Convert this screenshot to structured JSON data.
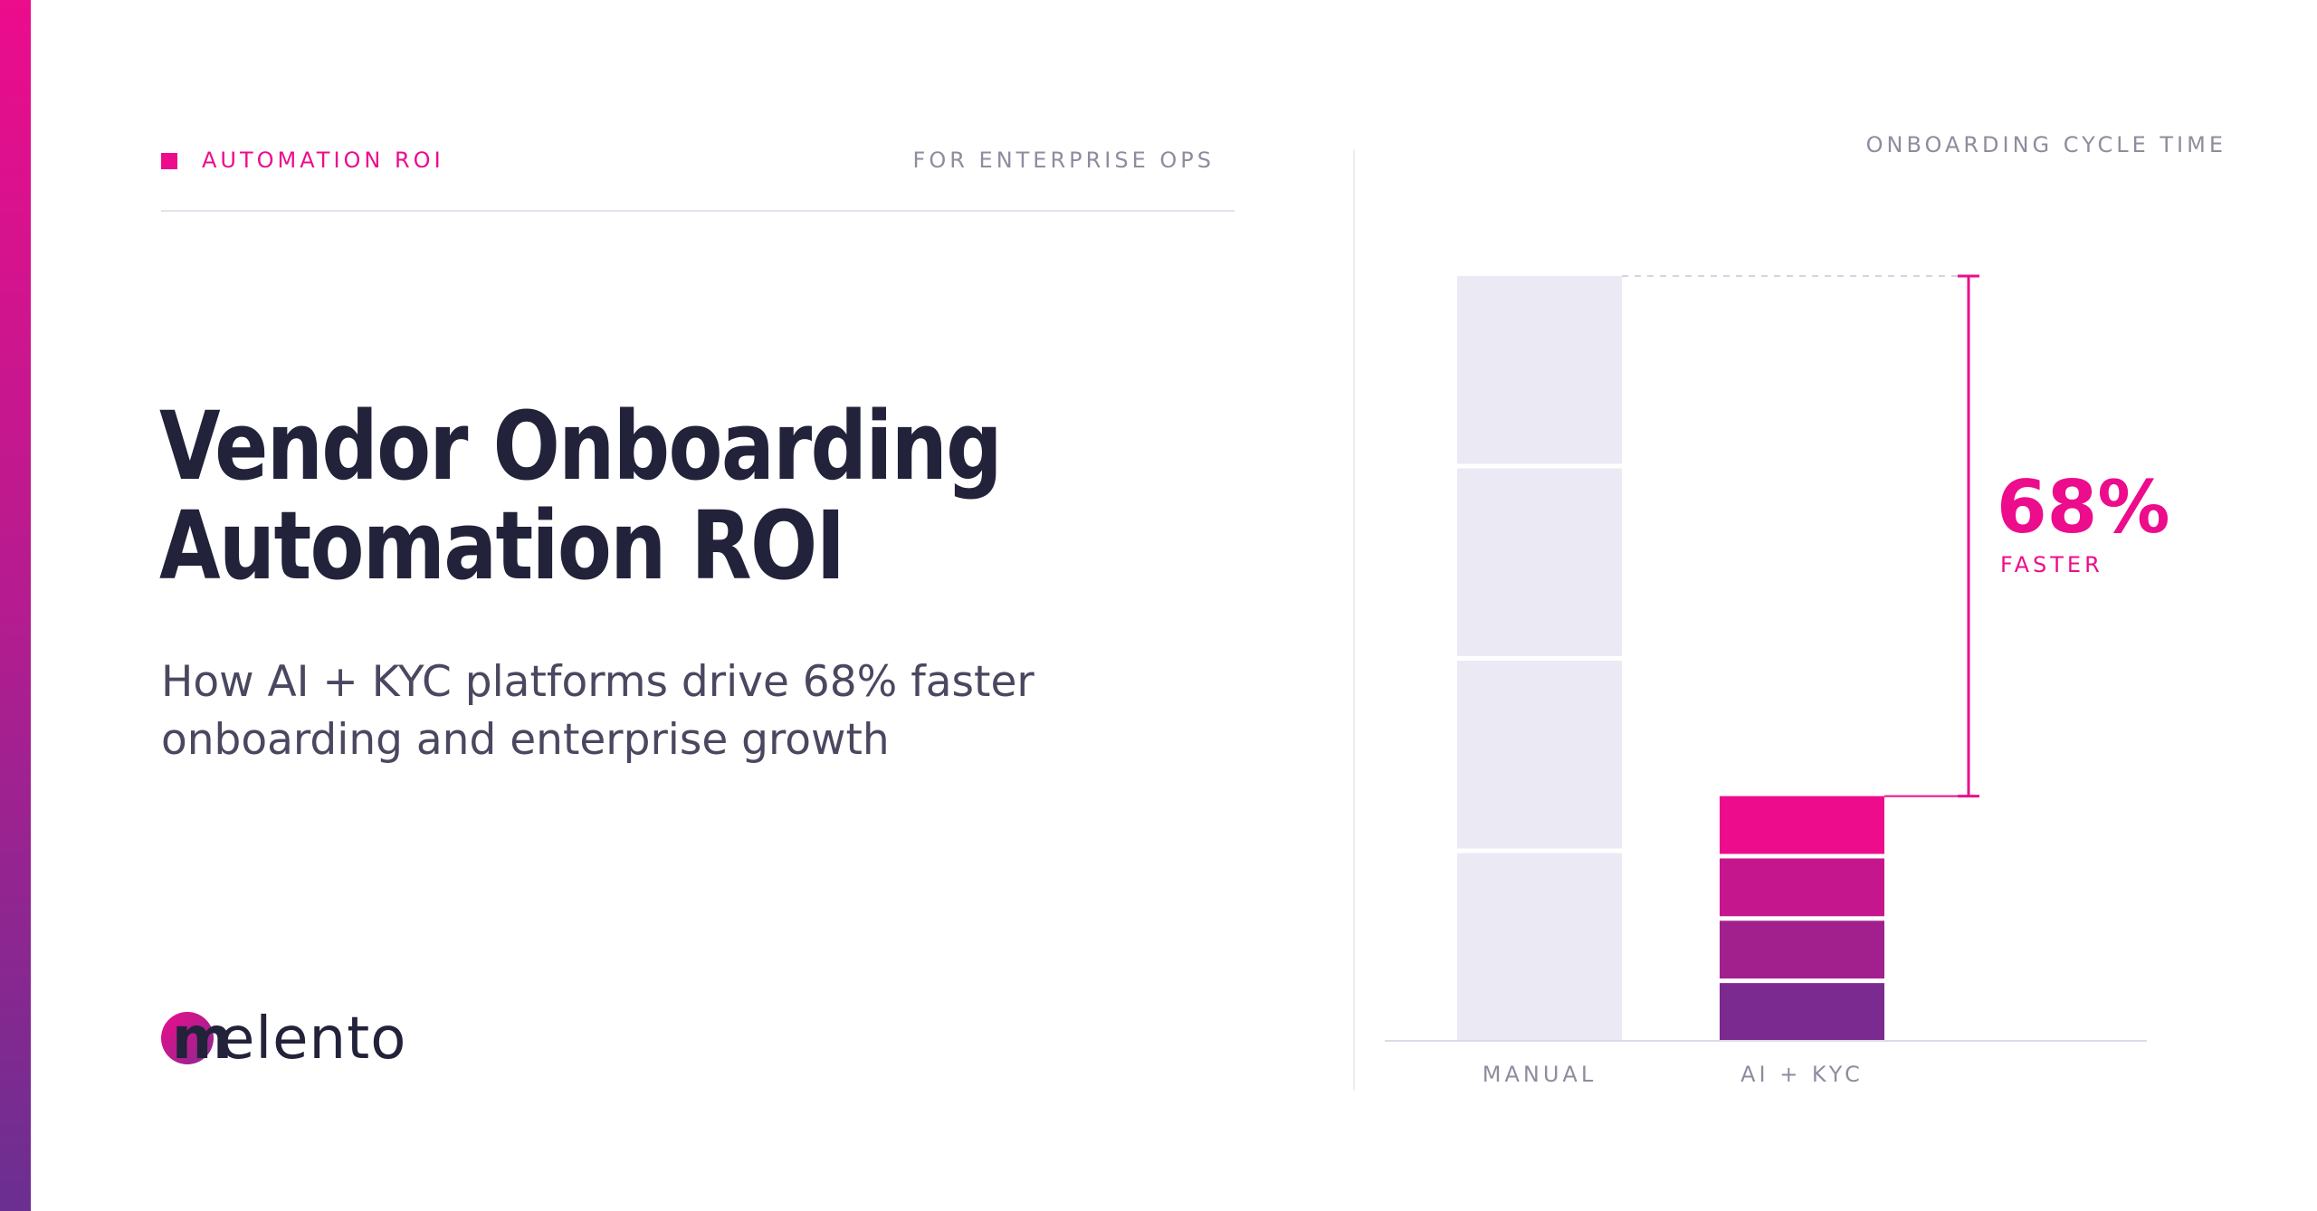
{
  "header": {
    "tag": "AUTOMATION ROI",
    "audience": "FOR ENTERPRISE OPS"
  },
  "title": {
    "line1": "Vendor Onboarding",
    "line2": "Automation ROI"
  },
  "subtitle": {
    "line1": "How AI + KYC platforms drive 68% faster",
    "line2": "onboarding and enterprise growth"
  },
  "logo": {
    "mark": "m",
    "word": "elento"
  },
  "colors": {
    "accent": "#ec0c8c",
    "accent_dark": "#7b2a8f",
    "manual_bar": "#ebe9f3",
    "ink": "#22223a",
    "muted": "#8e8c9e"
  },
  "chart_data": {
    "type": "bar",
    "title": "ONBOARDING CYCLE TIME",
    "categories": [
      "MANUAL",
      "AI + KYC"
    ],
    "values": [
      100,
      32
    ],
    "ylim": [
      0,
      100
    ],
    "grid": false,
    "segments": {
      "MANUAL": 4,
      "AI + KYC": 4
    },
    "annotation": {
      "value": "68%",
      "label": "FASTER"
    }
  }
}
